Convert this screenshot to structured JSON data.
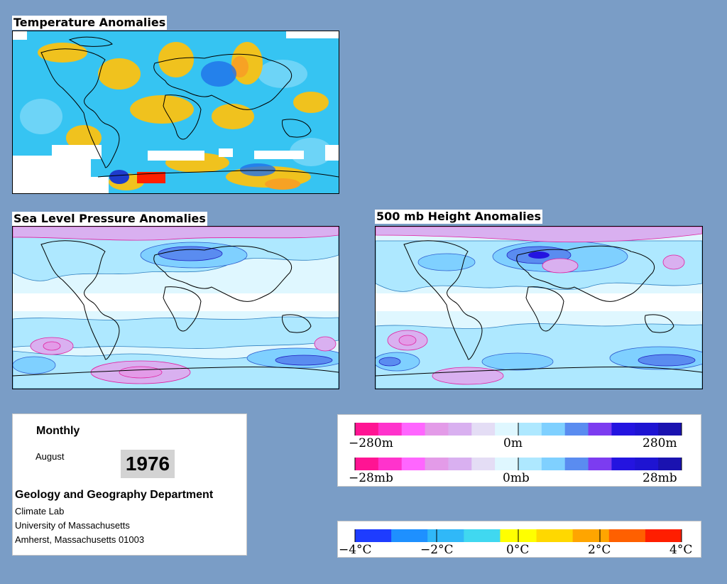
{
  "maps": {
    "temperature": {
      "title": "Temperature Anomalies"
    },
    "slp": {
      "title": "Sea Level Pressure Anomalies"
    },
    "height500": {
      "title": "500 mb Height Anomalies"
    }
  },
  "info": {
    "period_type": "Monthly",
    "month": "August",
    "year": "1976",
    "department": "Geology and Geography Department",
    "lab": "Climate Lab",
    "university": "University of Massachusetts",
    "address": "Amherst, Massachusetts 01003"
  },
  "legends": {
    "height": {
      "min_label": "−280m",
      "mid_label": "0m",
      "max_label": "280m"
    },
    "pressure": {
      "min_label": "−28mb",
      "mid_label": "0mb",
      "max_label": "28mb"
    },
    "temperature": {
      "labels": [
        "−4°C",
        "−2°C",
        "0°C",
        "2°C",
        "4°C"
      ]
    }
  },
  "colors": {
    "page_background": "#7A9DC6",
    "anomaly_scale": [
      "#FF1493",
      "#FF33CC",
      "#FF66FF",
      "#E39BE8",
      "#D9B0F0",
      "#E4DDF5",
      "#DFF7FF",
      "#AEE8FF",
      "#7FD0FF",
      "#5A8CF0",
      "#7C3CF0",
      "#2414E0",
      "#1E14D2",
      "#1A12B0"
    ],
    "temperature_scale": [
      "#1E3CFF",
      "#1E90FF",
      "#30B8F8",
      "#40D8F0",
      "#FFFF00",
      "#FFD800",
      "#FFA500",
      "#FF6000",
      "#FF1E00"
    ]
  }
}
